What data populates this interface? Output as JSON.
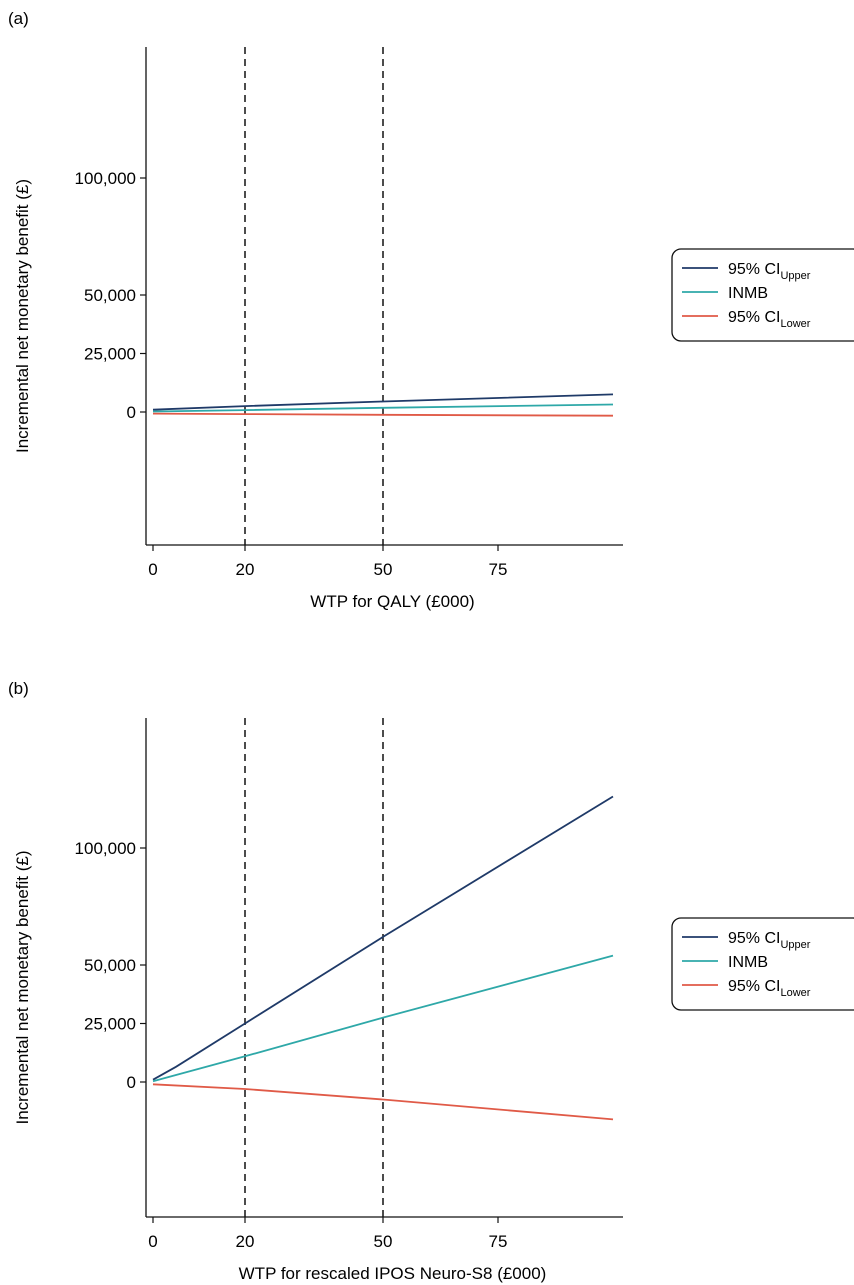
{
  "chart_data": [
    {
      "type": "line",
      "panel_label": "(a)",
      "xlabel": "WTP for QALY (£000)",
      "ylabel": "Incremental net monetary benefit (£)",
      "x_ticks": [
        0,
        20,
        50,
        75
      ],
      "x_tick_labels": [
        "0",
        "20",
        "50",
        "75"
      ],
      "y_ticks": [
        0,
        25000,
        50000,
        100000
      ],
      "y_tick_labels": [
        "0",
        "25,000",
        "50,000",
        "100,000"
      ],
      "xlim": [
        -2,
        100
      ],
      "ylim": [
        -68000,
        145000
      ],
      "vlines": [
        20,
        50
      ],
      "grid": false,
      "legend_position": "right",
      "series": [
        {
          "name": "95% CI",
          "name_sub": "Upper",
          "color": "#1f3a68",
          "x": [
            0,
            20,
            50,
            100
          ],
          "y": [
            1000,
            2500,
            4500,
            7500
          ]
        },
        {
          "name": "INMB",
          "color": "#2ea8a8",
          "x": [
            0,
            20,
            50,
            100
          ],
          "y": [
            200,
            800,
            1800,
            3200
          ]
        },
        {
          "name": "95% CI",
          "name_sub": "Lower",
          "color": "#e05a47",
          "x": [
            0,
            20,
            50,
            100
          ],
          "y": [
            -700,
            -900,
            -1200,
            -1600
          ]
        }
      ]
    },
    {
      "type": "line",
      "panel_label": "(b)",
      "xlabel": "WTP for rescaled IPOS Neuro-S8 (£000)",
      "ylabel": "Incremental net monetary benefit (£)",
      "x_ticks": [
        0,
        20,
        50,
        75
      ],
      "x_tick_labels": [
        "0",
        "20",
        "50",
        "75"
      ],
      "y_ticks": [
        0,
        25000,
        50000,
        100000
      ],
      "y_tick_labels": [
        "0",
        "25,000",
        "50,000",
        "100,000"
      ],
      "xlim": [
        -2,
        100
      ],
      "ylim": [
        -68000,
        145000
      ],
      "vlines": [
        20,
        50
      ],
      "grid": false,
      "legend_position": "right",
      "series": [
        {
          "name": "95% CI",
          "name_sub": "Upper",
          "color": "#1f3a68",
          "x": [
            0,
            5,
            20,
            50,
            100
          ],
          "y": [
            1000,
            6500,
            25000,
            62000,
            122000
          ]
        },
        {
          "name": "INMB",
          "color": "#2ea8a8",
          "x": [
            0,
            20,
            50,
            100
          ],
          "y": [
            300,
            11000,
            27500,
            54000
          ]
        },
        {
          "name": "95% CI",
          "name_sub": "Lower",
          "color": "#e05a47",
          "x": [
            0,
            20,
            50,
            100
          ],
          "y": [
            -1000,
            -3000,
            -7500,
            -16000
          ]
        }
      ]
    }
  ]
}
